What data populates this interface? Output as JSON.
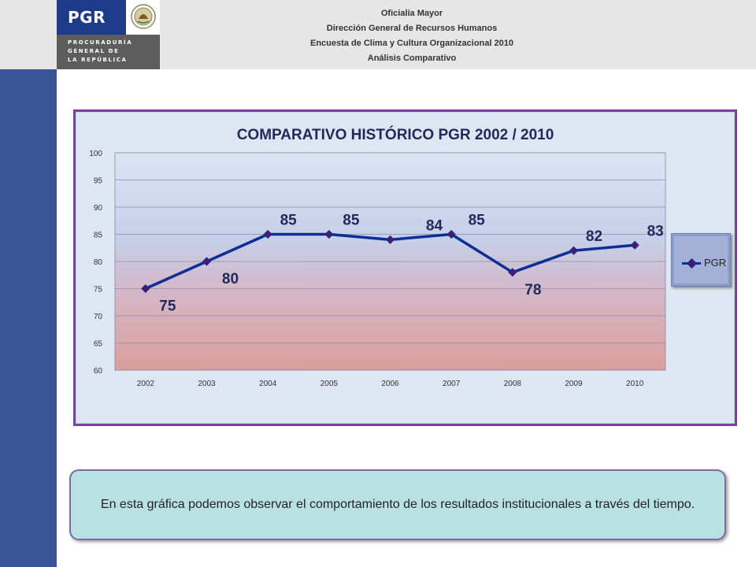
{
  "header": {
    "logo_text": "PGR",
    "logo_subtitle": [
      "PROCURADURÍA",
      "GENERAL DE",
      "LA REPÚBLICA"
    ],
    "lines": [
      "Oficialía Mayor",
      "Dirección General de Recursos Humanos",
      "Encuesta de Clima y Cultura Organizacional 2010",
      "Análisis Comparativo"
    ]
  },
  "chart_data": {
    "type": "line",
    "title": "COMPARATIVO  HISTÓRICO PGR 2002 / 2010",
    "categories": [
      "2002",
      "2003",
      "2004",
      "2005",
      "2006",
      "2007",
      "2008",
      "2009",
      "2010"
    ],
    "series": [
      {
        "name": "PGR",
        "values": [
          75,
          80,
          85,
          85,
          84,
          85,
          78,
          82,
          83
        ]
      }
    ],
    "ylim": [
      60,
      100
    ],
    "yticks": [
      60,
      65,
      70,
      75,
      80,
      85,
      90,
      95,
      100
    ],
    "grid": true,
    "legend": "right",
    "colors": {
      "line": "#0d2e94",
      "marker": "#4a1a6b",
      "label": "#1f2a5a"
    }
  },
  "note": {
    "text": "En esta gráfica podemos observar el comportamiento de los resultados institucionales a través del tiempo."
  },
  "colors": {
    "sidebar": "#3b5597",
    "frame": "#7a3fa0",
    "note_bg": "#b9e1e2"
  }
}
